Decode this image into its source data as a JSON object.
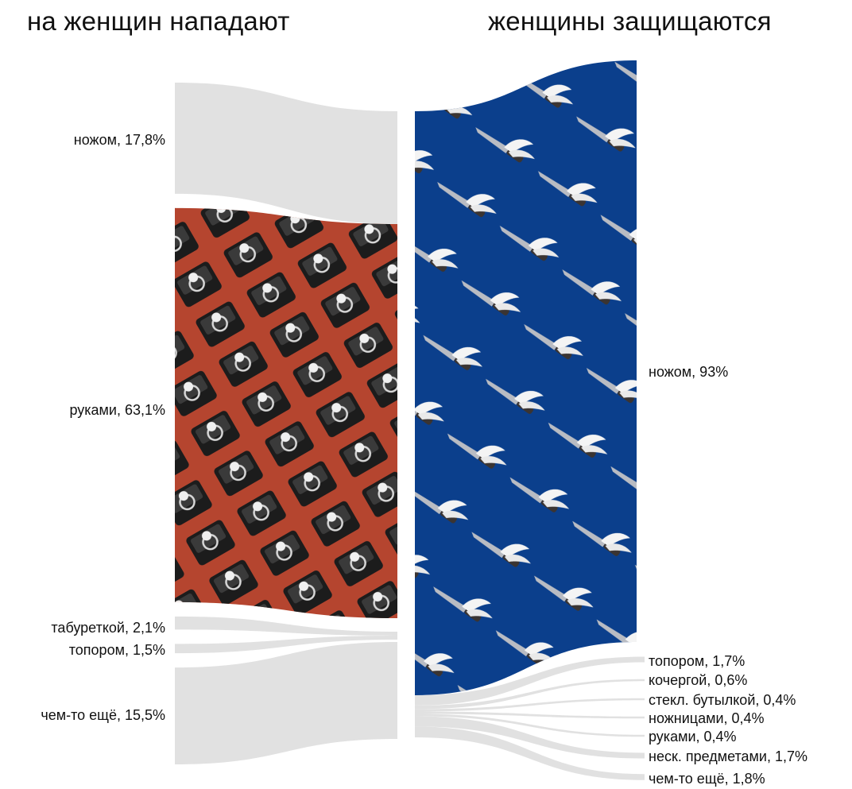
{
  "titles": {
    "left": "на женщин нападают",
    "right": "женщины защищаются"
  },
  "colors": {
    "neutral": "#e1e1e1",
    "hands": "#b5452f",
    "knife": "#0b3f8c"
  },
  "chart_data": {
    "type": "sankey",
    "columns": [
      {
        "name": "на женщин нападают",
        "items": [
          {
            "label": "ножом, 17,8%",
            "category": "ножом",
            "value": 17.8
          },
          {
            "label": "руками, 63,1%",
            "category": "руками",
            "value": 63.1
          },
          {
            "label": "табуреткой, 2,1%",
            "category": "табуреткой",
            "value": 2.1
          },
          {
            "label": "топором, 1,5%",
            "category": "топором",
            "value": 1.5
          },
          {
            "label": "чем-то ещё, 15,5%",
            "category": "чем-то ещё",
            "value": 15.5
          }
        ]
      },
      {
        "name": "женщины защищаются",
        "items": [
          {
            "label": "ножом, 93%",
            "category": "ножом",
            "value": 93
          },
          {
            "label": "топором, 1,7%",
            "category": "топором",
            "value": 1.7
          },
          {
            "label": "кочергой, 0,6%",
            "category": "кочергой",
            "value": 0.6
          },
          {
            "label": "стекл. бутылкой, 0,4%",
            "category": "стекл. бутылкой",
            "value": 0.4
          },
          {
            "label": "ножницами, 0,4%",
            "category": "ножницами",
            "value": 0.4
          },
          {
            "label": "руками, 0,4%",
            "category": "руками",
            "value": 0.4
          },
          {
            "label": "неск. предметами, 1,7%",
            "category": "неск. предметами",
            "value": 1.7
          },
          {
            "label": "чем-то ещё, 1,8%",
            "category": "чем-то ещё",
            "value": 1.8
          }
        ]
      }
    ]
  }
}
